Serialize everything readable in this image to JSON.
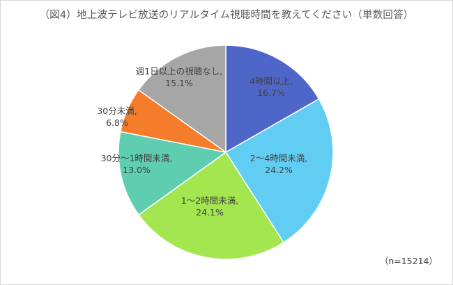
{
  "chart_data": {
    "type": "pie",
    "title": "（図4）地上波テレビ放送のリアルタイム視聴時間を教えてください（単数回答）",
    "note": "（n=15214）",
    "slices": [
      {
        "label": "4時間以上",
        "value": 16.7,
        "value_text": "16.7%",
        "color": "#4f66c9"
      },
      {
        "label": "2～4時間未満",
        "value": 24.2,
        "value_text": "24.2%",
        "color": "#62cdf2"
      },
      {
        "label": "1～2時間未満",
        "value": 24.1,
        "value_text": "24.1%",
        "color": "#a3e64f"
      },
      {
        "label": "30分～1時間未満",
        "value": 13.0,
        "value_text": "13.0%",
        "color": "#5ecdb0"
      },
      {
        "label": "30分未満",
        "value": 6.8,
        "value_text": "6.8%",
        "color": "#f47c2a"
      },
      {
        "label": "週1日以上の視聴なし",
        "value": 15.1,
        "value_text": "15.1%",
        "color": "#a6a6a6"
      }
    ],
    "start_angle": "12 o'clock",
    "direction": "clockwise",
    "legend": "none",
    "data_labels": "category name and percentage"
  }
}
